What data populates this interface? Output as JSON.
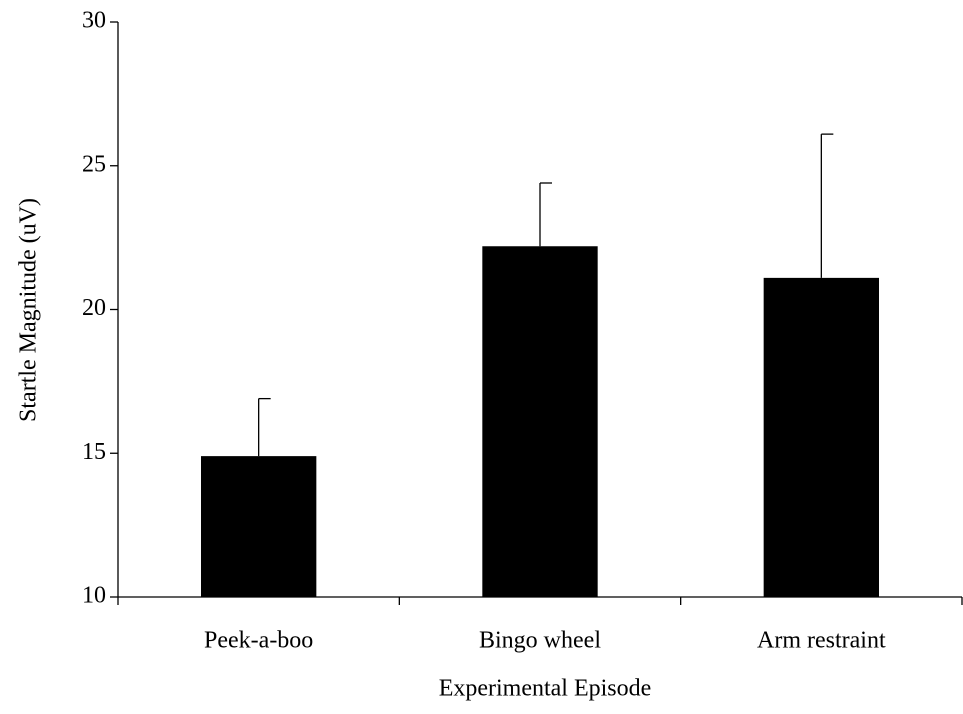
{
  "chart_data": {
    "type": "bar",
    "x_label": "Experimental Episode",
    "y_label": "Startle Magnitude (uV)",
    "categories": [
      "Peek-a-boo",
      "Bingo wheel",
      "Arm restraint"
    ],
    "values": [
      14.9,
      22.2,
      21.1
    ],
    "errors": [
      2.0,
      2.2,
      5.0
    ],
    "color": "#000000",
    "ylim": [
      10,
      30
    ],
    "yticks": [
      10,
      15,
      20,
      25,
      30
    ],
    "grid": false
  }
}
